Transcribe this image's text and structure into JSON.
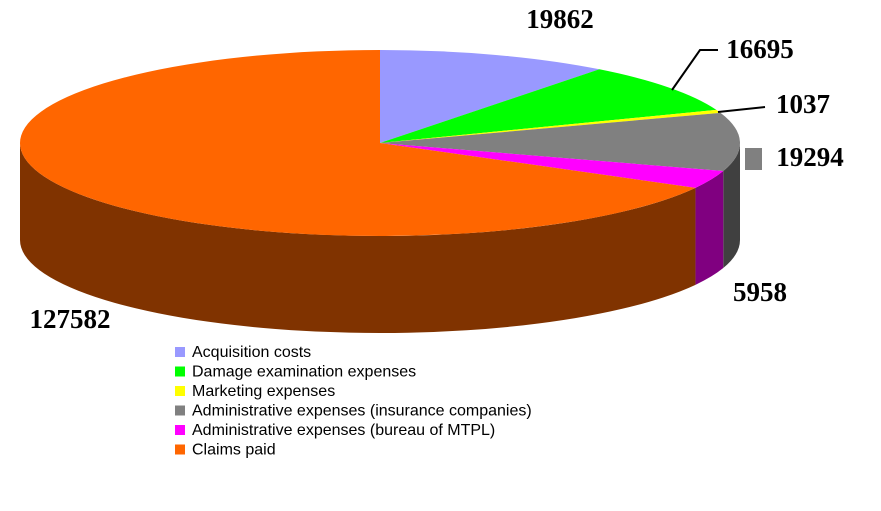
{
  "chart_data": {
    "type": "pie",
    "categories": [
      "Acquisition costs",
      "Damage examination expenses",
      "Marketing expenses",
      "Administrative expenses (insurance companies)",
      "Administrative expenses (bureau of MTPL)",
      "Claims paid"
    ],
    "values": [
      19862,
      16695,
      1037,
      19294,
      5958,
      127582
    ],
    "colors": [
      "#9999ff",
      "#00ff00",
      "#ffff00",
      "#808080",
      "#ff00ff",
      "#ff6600"
    ],
    "legend": "bottom"
  }
}
